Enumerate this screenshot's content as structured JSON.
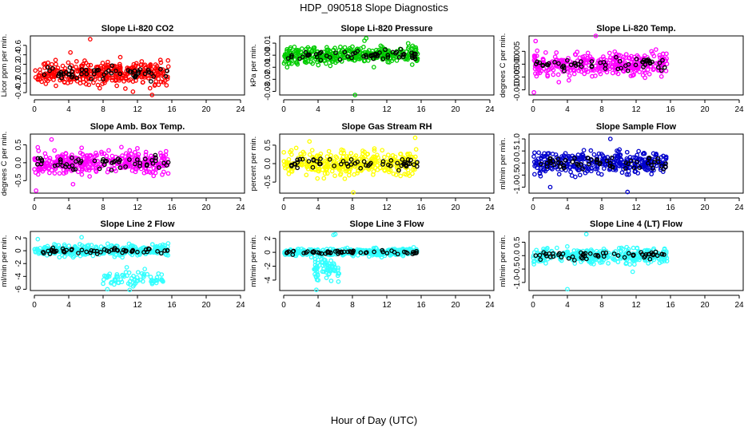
{
  "figure": {
    "title": "HDP_090518  Slope Diagnostics",
    "xlabel": "Hour of Day (UTC)"
  },
  "chart_data": [
    {
      "type": "scatter",
      "title": "Slope Li-820 CO2",
      "ylabel": "Licor ppm per min.",
      "color": "#ff0000",
      "xlim": [
        0,
        24
      ],
      "xticks": [
        0,
        4,
        8,
        12,
        16,
        20,
        24
      ],
      "ylim": [
        -0.45,
        0.8
      ],
      "yticks": [
        -0.4,
        -0.2,
        0.0,
        0.2,
        0.4,
        0.6
      ],
      "x_range": [
        0,
        15.6
      ],
      "center": 0.0,
      "spread": 0.17,
      "outliers": [
        [
          6.5,
          0.73
        ],
        [
          13.7,
          -0.45
        ],
        [
          10.0,
          0.35
        ],
        [
          4.2,
          0.45
        ]
      ]
    },
    {
      "type": "scatter",
      "title": "Slope Li-820 Pressure",
      "ylabel": "kPa per min.",
      "color": "#00cc00",
      "xlim": [
        0,
        24
      ],
      "xticks": [
        0,
        4,
        8,
        12,
        16,
        20,
        24
      ],
      "ylim": [
        -0.033,
        0.016
      ],
      "yticks": [
        -0.03,
        -0.02,
        -0.01,
        0.0,
        0.01
      ],
      "x_range": [
        0,
        15.6
      ],
      "center": 0.0,
      "spread": 0.005,
      "outliers": [
        [
          8.3,
          -0.033
        ],
        [
          9.6,
          0.014
        ],
        [
          0.4,
          -0.01
        ],
        [
          9.4,
          0.012
        ]
      ]
    },
    {
      "type": "scatter",
      "title": "Slope Li-820 Temp.",
      "ylabel": "degrees C per min.",
      "color": "#ff00ff",
      "xlim": [
        0,
        24
      ],
      "xticks": [
        0,
        4,
        8,
        12,
        16,
        20,
        24
      ],
      "ylim": [
        -0.012,
        0.011
      ],
      "yticks": [
        -0.01,
        -0.005,
        0.0,
        0.005
      ],
      "x_range": [
        0,
        15.6
      ],
      "center": 0.0,
      "spread": 0.003,
      "outliers": [
        [
          0.1,
          -0.011
        ],
        [
          7.3,
          0.011
        ],
        [
          0.3,
          0.009
        ],
        [
          3.0,
          -0.007
        ]
      ]
    },
    {
      "type": "scatter",
      "title": "Slope Amb. Box Temp.",
      "ylabel": "degrees C per min.",
      "color": "#ff00ff",
      "xlim": [
        0,
        24
      ],
      "xticks": [
        0,
        4,
        8,
        12,
        16,
        20,
        24
      ],
      "ylim": [
        -0.85,
        0.8
      ],
      "yticks": [
        -0.5,
        0.0,
        0.5
      ],
      "x_range": [
        0,
        15.6
      ],
      "center": 0.0,
      "spread": 0.22,
      "outliers": [
        [
          0.2,
          -0.78
        ],
        [
          4.5,
          -0.6
        ],
        [
          2.0,
          0.65
        ]
      ]
    },
    {
      "type": "scatter",
      "title": "Slope Gas Stream RH",
      "ylabel": "percent per min.",
      "color": "#ffff00",
      "xlim": [
        0,
        24
      ],
      "xticks": [
        0,
        4,
        8,
        12,
        16,
        20,
        24
      ],
      "ylim": [
        -0.8,
        0.8
      ],
      "yticks": [
        -0.5,
        0.0,
        0.5
      ],
      "x_range": [
        0,
        15.6
      ],
      "center": 0.0,
      "spread": 0.22,
      "outliers": [
        [
          8.1,
          -0.78
        ],
        [
          15.3,
          0.7
        ],
        [
          3.0,
          0.6
        ]
      ]
    },
    {
      "type": "scatter",
      "title": "Slope Sample Flow",
      "ylabel": "ml/min per min.",
      "color": "#0000cc",
      "xlim": [
        0,
        24
      ],
      "xticks": [
        0,
        4,
        8,
        12,
        16,
        20,
        24
      ],
      "ylim": [
        -1.25,
        1.2
      ],
      "yticks": [
        -1.0,
        -0.5,
        0.0,
        0.5,
        1.0
      ],
      "x_range": [
        0,
        15.6
      ],
      "center": 0.0,
      "spread": 0.32,
      "outliers": [
        [
          11.0,
          -1.2
        ],
        [
          2.0,
          -1.0
        ],
        [
          9.0,
          1.0
        ]
      ]
    },
    {
      "type": "scatter",
      "title": "Slope Line 2 Flow",
      "ylabel": "ml/min per min.",
      "color": "#33ffff",
      "xlim": [
        0,
        24
      ],
      "xticks": [
        0,
        4,
        8,
        12,
        16,
        20,
        24
      ],
      "ylim": [
        -6.2,
        3.0
      ],
      "yticks": [
        -6,
        -4,
        -2,
        0,
        2
      ],
      "x_range": [
        0,
        15.6
      ],
      "center": 0.0,
      "spread": 0.55,
      "outliers": [
        [
          5.5,
          2.1
        ],
        [
          0.4,
          1.8
        ],
        [
          8.5,
          -6.0
        ]
      ],
      "cluster": {
        "x_range": [
          8,
          15
        ],
        "center": -4.5,
        "spread": 0.9
      }
    },
    {
      "type": "scatter",
      "title": "Slope Line 3 Flow",
      "ylabel": "ml/min per min.",
      "color": "#33ffff",
      "xlim": [
        0,
        24
      ],
      "xticks": [
        0,
        4,
        8,
        12,
        16,
        20,
        24
      ],
      "ylim": [
        -5.5,
        3.0
      ],
      "yticks": [
        -4,
        -2,
        0,
        2
      ],
      "x_range": [
        0,
        15.6
      ],
      "center": 0.0,
      "spread": 0.35,
      "outliers": [
        [
          3.8,
          -5.4
        ],
        [
          5.8,
          2.5
        ],
        [
          6.0,
          2.6
        ]
      ],
      "cluster": {
        "x_range": [
          3.5,
          6.5
        ],
        "center": -2.5,
        "spread": 1.1
      }
    },
    {
      "type": "scatter",
      "title": "Slope Line 4 (LT) Flow",
      "ylabel": "ml/min per min.",
      "color": "#33ffff",
      "xlim": [
        0,
        24
      ],
      "xticks": [
        0,
        4,
        8,
        12,
        16,
        20,
        24
      ],
      "ylim": [
        -1.3,
        0.9
      ],
      "yticks": [
        -1.0,
        -0.5,
        0.0,
        0.5
      ],
      "x_range": [
        0,
        15.6
      ],
      "center": 0.0,
      "spread": 0.18,
      "outliers": [
        [
          4.0,
          -1.25
        ],
        [
          6.2,
          0.8
        ],
        [
          11.6,
          -0.6
        ]
      ]
    }
  ]
}
